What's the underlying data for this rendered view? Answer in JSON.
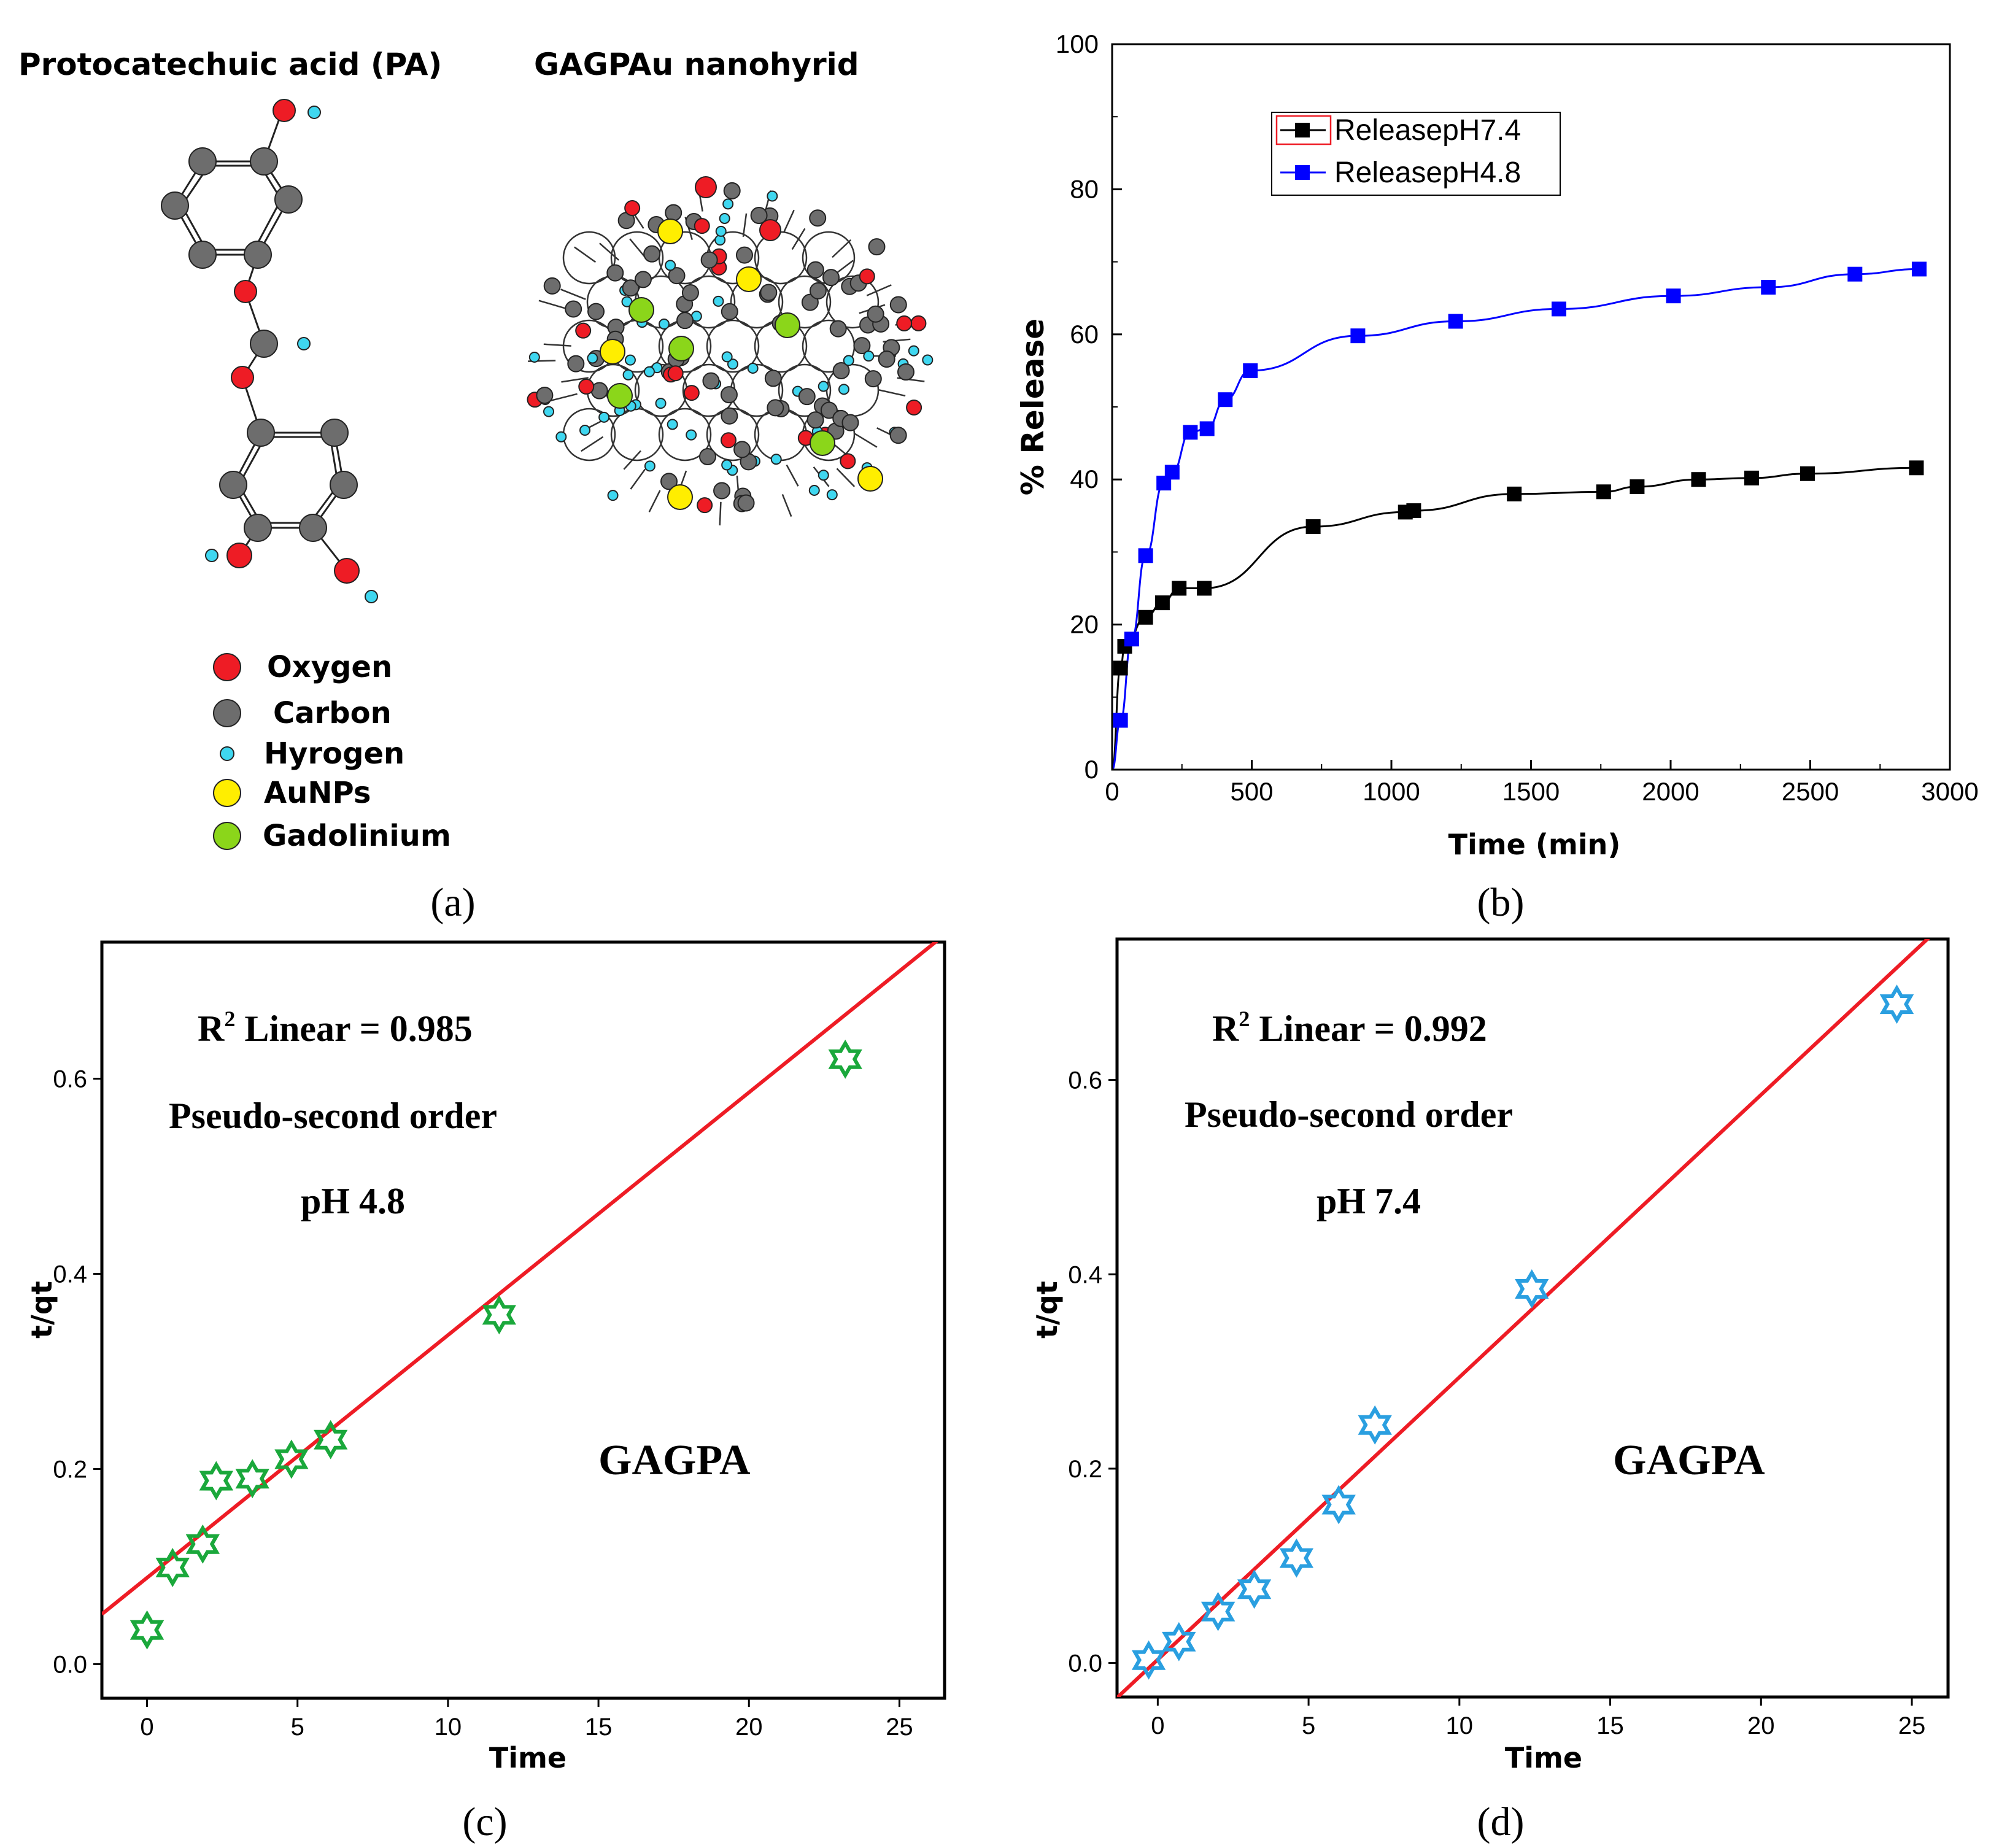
{
  "panel_a": {
    "label": "(a)",
    "pa_title": "Protocatechuic acid (PA)",
    "hybrid_title": "GAGPAu nanohyrid",
    "legend": [
      {
        "name": "Oxygen",
        "color": "#ee1c25"
      },
      {
        "name": "Carbon",
        "color": "#6d6d6d"
      },
      {
        "name": "Hyrogen",
        "color": "#3fd7f0"
      },
      {
        "name": "AuNPs",
        "color": "#ffee00"
      },
      {
        "name": "Gadolinium",
        "color": "#8bd61a"
      }
    ]
  },
  "panel_b": {
    "label": "(b)"
  },
  "panel_c": {
    "label": "(c)"
  },
  "panel_d": {
    "label": "(d)"
  },
  "chart_data": [
    {
      "id": "b",
      "type": "line",
      "xlabel": "Time (min)",
      "ylabel": "% Release",
      "xlim": [
        0,
        3000
      ],
      "ylim": [
        0,
        100
      ],
      "xticks": [
        0,
        500,
        1000,
        1500,
        2000,
        2500,
        3000
      ],
      "yticks": [
        0,
        20,
        40,
        60,
        80,
        100
      ],
      "legend_position": "top-left",
      "series": [
        {
          "name": "ReleasepH7.4",
          "color": "#000000",
          "x": [
            30,
            45,
            120,
            180,
            240,
            330,
            720,
            1050,
            1080,
            1440,
            1760,
            1880,
            2100,
            2290,
            2490,
            2880
          ],
          "y": [
            14,
            17,
            21,
            23,
            25,
            25,
            33.5,
            35.5,
            35.7,
            38,
            38.3,
            39,
            40,
            40.2,
            40.8,
            41.6
          ]
        },
        {
          "name": "ReleasepH4.8",
          "color": "#0000ff",
          "x": [
            30,
            70,
            120,
            185,
            215,
            280,
            340,
            405,
            495,
            880,
            1230,
            1600,
            2010,
            2350,
            2660,
            2890
          ],
          "y": [
            6.8,
            18,
            29.5,
            39.5,
            41,
            46.5,
            47,
            51,
            55,
            59.8,
            61.8,
            63.5,
            65.3,
            66.5,
            68.3,
            69
          ]
        }
      ]
    },
    {
      "id": "c",
      "type": "scatter",
      "xlabel": "Time",
      "ylabel": "t/qt",
      "xlim": [
        -1.5,
        26.5
      ],
      "ylim": [
        -0.035,
        0.74
      ],
      "xticks": [
        0,
        5,
        10,
        15,
        20,
        25
      ],
      "yticks": [
        "0.0",
        "0.2",
        "0.4",
        "0.6"
      ],
      "marker_color": "#1aa83b",
      "fit_color": "#ee1c25",
      "x": [
        0,
        0.85,
        1.85,
        2.3,
        3.5,
        4.8,
        6.1,
        11.7,
        23.2
      ],
      "y": [
        0.035,
        0.099,
        0.123,
        0.188,
        0.19,
        0.21,
        0.23,
        0.358,
        0.62
      ],
      "fit": {
        "slope": 0.02487,
        "intercept": 0.0885
      },
      "annotations": [
        "R",
        "2",
        " Linear = 0.985",
        "Pseudo-second order",
        "pH 4.8",
        "GAGPA"
      ]
    },
    {
      "id": "d",
      "type": "scatter",
      "xlabel": "Time",
      "ylabel": "t/qt",
      "xlim": [
        -1.35,
        26.2
      ],
      "ylim": [
        -0.035,
        0.745
      ],
      "xticks": [
        0,
        5,
        10,
        15,
        20,
        25
      ],
      "yticks": [
        "0.0",
        "0.2",
        "0.4",
        "0.6"
      ],
      "marker_color": "#2a9fe0",
      "fit_color": "#ee1c25",
      "x": [
        -0.3,
        0.7,
        2,
        3.2,
        4.6,
        6,
        7.2,
        12.4,
        24.5
      ],
      "y": [
        0.003,
        0.022,
        0.053,
        0.076,
        0.108,
        0.163,
        0.245,
        0.385,
        0.678
      ],
      "fit": {
        "slope": 0.02906,
        "intercept": 0.0035
      },
      "annotations": [
        "R",
        "2",
        " Linear = 0.992",
        "Pseudo-second order",
        "pH 7.4",
        "GAGPA"
      ]
    }
  ]
}
